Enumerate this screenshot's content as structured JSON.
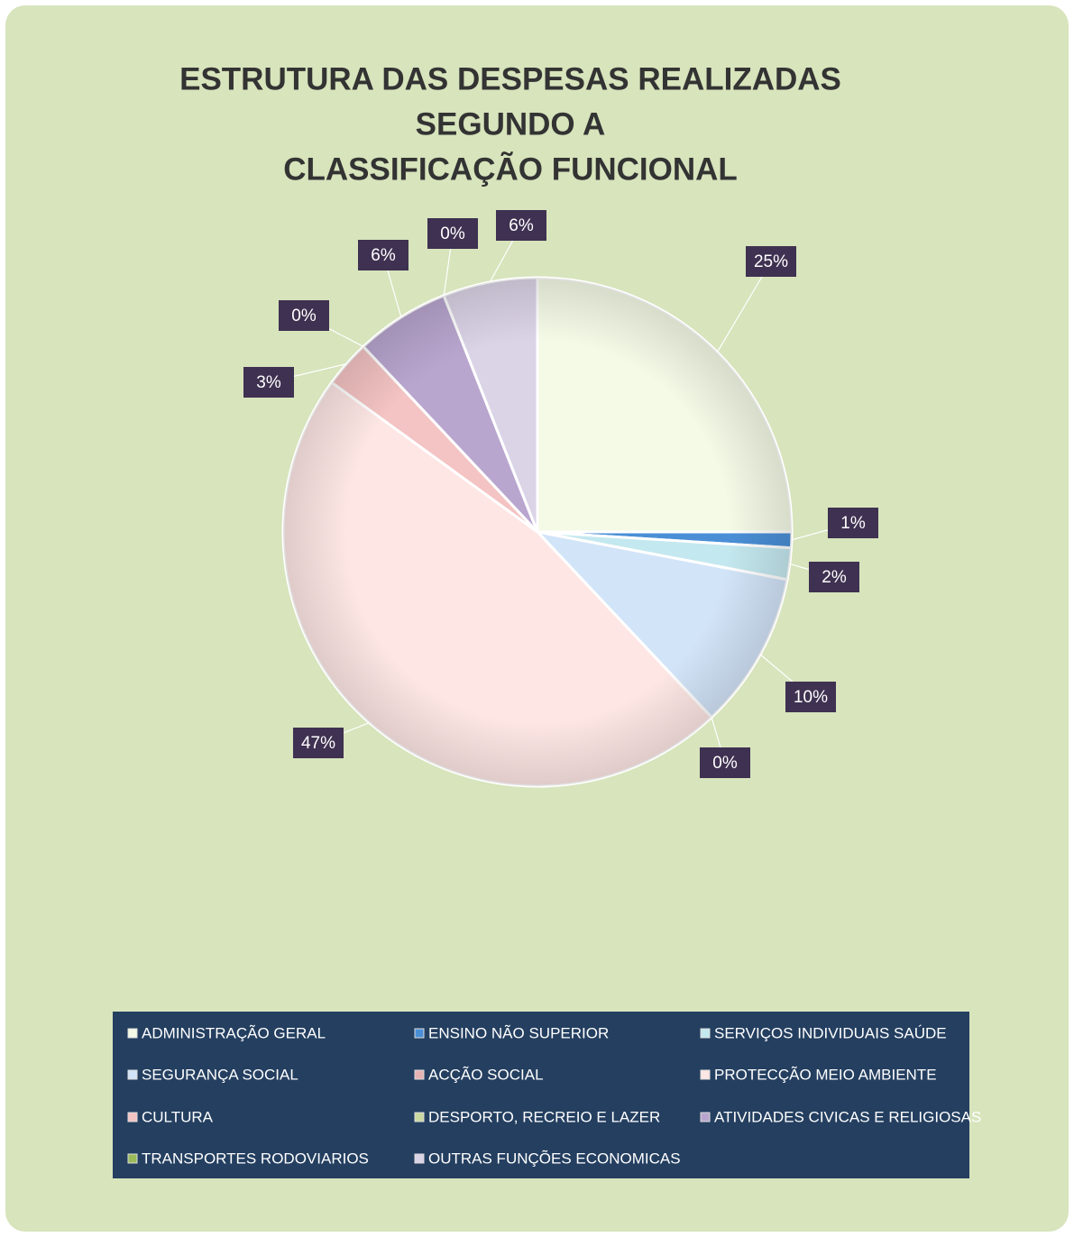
{
  "chart_data": {
    "type": "pie",
    "title": [
      "ESTRUTURA DAS DESPESAS REALIZADAS",
      "SEGUNDO A",
      "CLASSIFICAÇÃO FUNCIONAL"
    ],
    "categories": [
      "ADMINISTRAÇÃO GERAL",
      "ENSINO NÃO SUPERIOR",
      "SERVIÇOS INDIVIDUAIS SAÚDE",
      "SEGURANÇA SOCIAL",
      "ACÇÃO SOCIAL",
      "PROTECÇÃO MEIO AMBIENTE",
      "CULTURA",
      "DESPORTO, RECREIO E LAZER",
      "ATIVIDADES CIVICAS E RELIGIOSAS",
      "TRANSPORTES RODOVIARIOS",
      "OUTRAS FUNÇÕES ECONOMICAS"
    ],
    "values": [
      25,
      1,
      2,
      10,
      0,
      47,
      3,
      0,
      6,
      0,
      6
    ],
    "value_labels": [
      "25%",
      "1%",
      "2%",
      "10%",
      "0%",
      "47%",
      "3%",
      "0%",
      "6%",
      "0%",
      "6%"
    ],
    "colors": [
      "#f4fae6",
      "#4a8fd6",
      "#c4e8ef",
      "#d2e4f8",
      "#e6b3b3",
      "#fde6e4",
      "#f4c3c3",
      "#c9d9a0",
      "#b9a6cf",
      "#9bbb59",
      "#dbd3e6"
    ],
    "legend": "bottom"
  }
}
